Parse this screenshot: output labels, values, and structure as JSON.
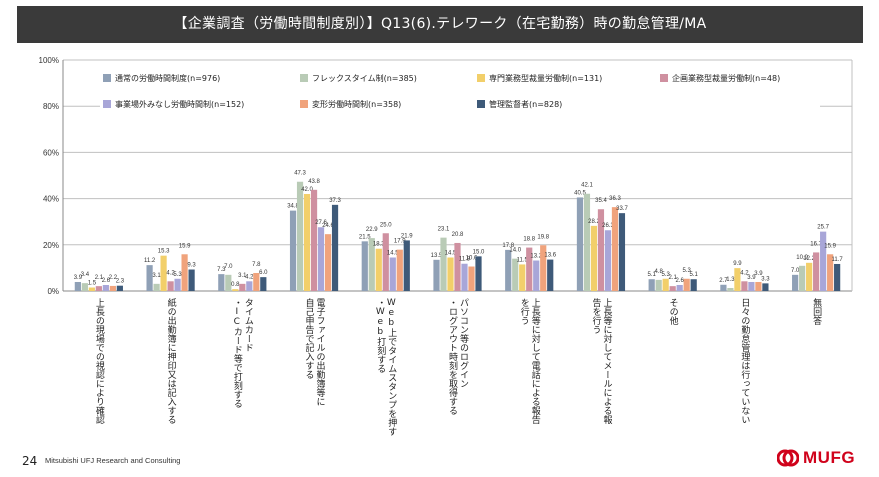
{
  "header": {
    "title": "【企業調査（労働時間制度別）】Q13(6).テレワーク（在宅勤務）時の勤怠管理/MA"
  },
  "footer": {
    "page_number": "24",
    "company": "Mitsubishi UFJ Research and Consulting",
    "logo_text": "MUFG"
  },
  "colors": {
    "series": [
      "#8fa0b6",
      "#b9cbb6",
      "#f2cf6a",
      "#cf90a0",
      "#a8a6d8",
      "#f0a37c",
      "#3e5a79"
    ],
    "grid": "#c0c0c0",
    "title_bg": "#3a3a3a",
    "logo": "#d0021b"
  },
  "chart_data": {
    "type": "bar",
    "ylim": [
      0,
      100
    ],
    "yticks": [
      "0%",
      "20%",
      "40%",
      "60%",
      "80%",
      "100%"
    ],
    "grid": true,
    "legend_position": "top",
    "categories": [
      "上長の現場での視認により確認",
      "紙の出勤簿に押印又は記入する",
      "タイムカード・ICカード等で打刻する",
      "電子ファイルの出勤簿等に自己申告で記入する",
      "Web上でタイムスタンプを押す・Web打刻する",
      "パソコン等のログイン・ログアウト時刻を取得する",
      "上長等に対して電話による報告を行う",
      "上長等に対してメールによる報告を行う",
      "その他",
      "日々の勤怠管理は行っていない",
      "無回答"
    ],
    "category_lines": [
      [
        "上長の現場での視認により確認"
      ],
      [
        "紙の出勤簿に押印又は記入する"
      ],
      [
        "タイムカード",
        "・ICカード等で打刻する"
      ],
      [
        "電子ファイルの出勤簿等に",
        "自己申告で記入する"
      ],
      [
        "Web上でタイムスタンプを押す",
        "・Web打刻する"
      ],
      [
        "パソコン等のログイン",
        "・ログアウト時刻を取得する"
      ],
      [
        "上長等に対して電話による報告",
        "を行う"
      ],
      [
        "上長等に対してメールによる報",
        "告を行う"
      ],
      [
        "その他"
      ],
      [
        "日々の勤怠管理は行っていない"
      ],
      [
        "無回答"
      ]
    ],
    "series": [
      {
        "name": "通常の労働時間制度(n=976)",
        "values": [
          3.9,
          11.2,
          7.3,
          34.8,
          21.5,
          13.5,
          17.8,
          40.5,
          5.1,
          2.7,
          7.0
        ]
      },
      {
        "name": "フレックスタイム制(n=385)",
        "values": [
          3.4,
          3.1,
          7.0,
          47.3,
          22.9,
          23.1,
          14.0,
          42.1,
          4.8,
          1.3,
          10.9
        ]
      },
      {
        "name": "専門業務型裁量労働制(n=131)",
        "values": [
          1.5,
          15.3,
          0.8,
          42.0,
          18.3,
          14.5,
          11.5,
          28.2,
          5.3,
          9.9,
          12.2
        ]
      },
      {
        "name": "企画業務型裁量労働制(n=48)",
        "values": [
          2.1,
          4.2,
          3.1,
          43.8,
          25.0,
          20.8,
          18.8,
          35.4,
          2.1,
          4.2,
          16.7
        ]
      },
      {
        "name": "事業場外みなし労働時間制(n=152)",
        "values": [
          2.6,
          5.3,
          4.2,
          27.6,
          14.5,
          11.8,
          13.2,
          26.3,
          2.6,
          3.9,
          25.7
        ]
      },
      {
        "name": "変形労働時間制(n=358)",
        "values": [
          2.2,
          15.9,
          7.8,
          24.6,
          17.9,
          10.6,
          19.8,
          36.3,
          5.3,
          3.9,
          15.9
        ]
      },
      {
        "name": "管理監督者(n=828)",
        "values": [
          2.3,
          9.3,
          6.0,
          37.3,
          21.9,
          15.0,
          13.6,
          33.7,
          5.1,
          3.3,
          11.7
        ]
      }
    ],
    "value_labels": [
      [
        "3.9",
        "11.2",
        "7.3",
        "34.8",
        "21.5",
        "13.5",
        "17.8",
        "40.5",
        "5.1",
        "2.7",
        "7.0"
      ],
      [
        "3.4",
        "3.1",
        "7.0",
        "47.3",
        "22.9",
        "23.1",
        "14.0",
        "42.1",
        "4.8",
        "1.3",
        "10.9"
      ],
      [
        "1.5",
        "15.3",
        "0.8",
        "42.0",
        "18.3",
        "14.5",
        "11.5",
        "28.2",
        "5.3",
        "9.9",
        "12.2"
      ],
      [
        "2.1",
        "4.2",
        "3.1",
        "43.8",
        "25.0",
        "20.8",
        "18.8",
        "35.4",
        "2.1",
        "4.2",
        "16.7"
      ],
      [
        "2.6",
        "5.3",
        "4.2",
        "27.6",
        "14.5",
        "11.8",
        "13.2",
        "26.3",
        "2.6",
        "3.9",
        "25.7"
      ],
      [
        "2.2",
        "15.9",
        "7.8",
        "24.6",
        "17.9",
        "10.6",
        "19.8",
        "36.3",
        "5.3",
        "3.9",
        "15.9"
      ],
      [
        "2.3",
        "9.3",
        "6.0",
        "37.3",
        "21.9",
        "15.0",
        "13.6",
        "33.7",
        "5.1",
        "3.3",
        "11.7"
      ]
    ]
  }
}
